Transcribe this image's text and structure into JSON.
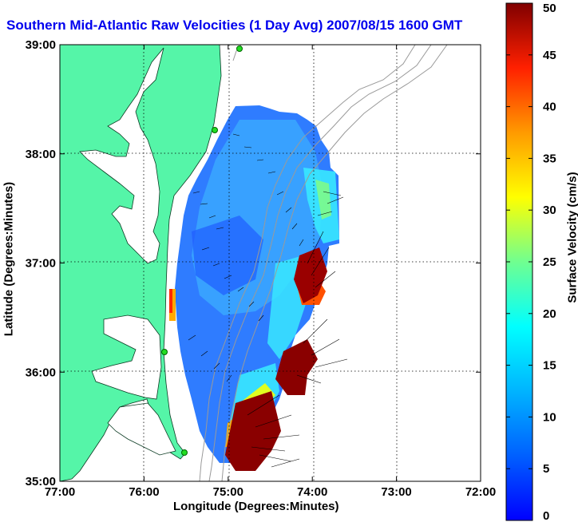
{
  "title": "Southern Mid-Atlantic Raw Velocities (1 Day Avg) 2007/08/15 1600 GMT",
  "map": {
    "xlabel": "Longitude (Degrees:Minutes)",
    "ylabel": "Latitude (Degrees:Minutes)",
    "x_ticks": [
      "77:00",
      "76:00",
      "75:00",
      "74:00",
      "73:00",
      "72:00"
    ],
    "y_ticks": [
      "39:00",
      "38:00",
      "37:00",
      "36:00",
      "35:00"
    ],
    "x_range": [
      -77,
      -72
    ],
    "y_range": [
      35,
      39
    ],
    "grid": true,
    "colors": {
      "land": "#55f5a8",
      "water": "#ffffff",
      "bathymetry": "#9a9a9a",
      "station": "#22dd22"
    }
  },
  "colorbar": {
    "label": "Surface Velocity (cm/s)",
    "ticks": [
      "0",
      "5",
      "10",
      "15",
      "20",
      "25",
      "30",
      "35",
      "40",
      "45",
      "50"
    ],
    "range": [
      0,
      50
    ],
    "colormap": "jet"
  }
}
